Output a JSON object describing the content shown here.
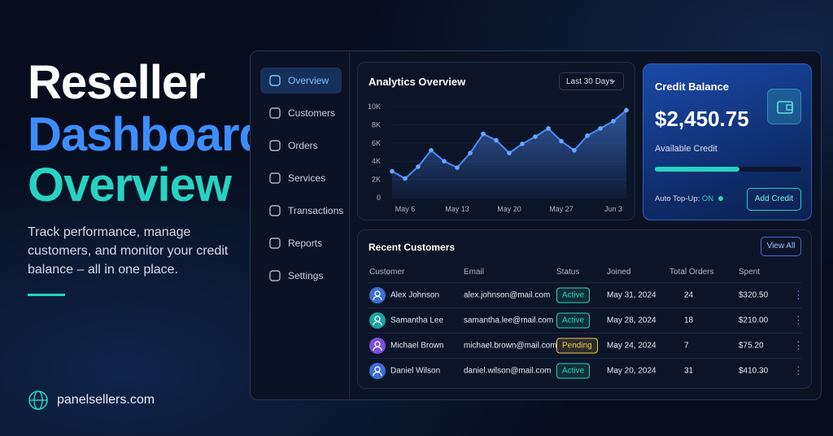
{
  "hero": {
    "title_line1": "Reseller",
    "title_line2": "Dashboard",
    "title_line3": "Overview",
    "description": "Track performance, manage customers, and monitor your credit balance – all in one place.",
    "website": "panelsellers.com"
  },
  "sidebar": {
    "items": [
      "Overview",
      "Customers",
      "Orders",
      "Services",
      "Transactions",
      "Reports",
      "Settings"
    ]
  },
  "chart_data": {
    "type": "line",
    "title": "Analytics Overview",
    "filter": "Last 30 Days",
    "color": "#4a8cff",
    "categories": [
      null,
      "May 6",
      null,
      null,
      null,
      "May 13",
      null,
      null,
      null,
      "May 20",
      null,
      null,
      null,
      "May 27",
      null,
      null,
      null,
      "Jun 3",
      null
    ],
    "values": [
      2900,
      2100,
      3400,
      5200,
      4000,
      3300,
      4900,
      7000,
      6300,
      4900,
      5900,
      6700,
      7600,
      6200,
      5200,
      6800,
      7600,
      8400,
      9600
    ],
    "ylim": [
      0,
      10000
    ],
    "yticks": [
      0,
      {
        "value": 2000,
        "label": "2K"
      },
      {
        "value": 4000,
        "label": "4K"
      },
      {
        "value": 6000,
        "label": "6K"
      },
      {
        "value": 8000,
        "label": "8K"
      },
      {
        "value": 10000,
        "label": "10K"
      }
    ]
  },
  "credit": {
    "title": "Credit Balance",
    "amount": "$2,450.75",
    "subtitle": "Available Credit",
    "progress": 58,
    "auto_topup_label": "Auto Top-Up:",
    "auto_topup_value": "ON",
    "button": "Add Credit"
  },
  "customers": {
    "title": "Recent Customers",
    "button": "View All",
    "headers": [
      "Customer",
      "Email",
      "Status",
      "Joined",
      "Total Orders",
      "Spent"
    ],
    "rows": [
      {
        "name": "Alex Johnson",
        "email": "alex.johnson@mail.com",
        "status": "Active",
        "joined": "May 31, 2024",
        "orders": 24,
        "spent": "$320.50",
        "status_color": "#2ed3b7",
        "avatar_color": "#3b6fd8"
      },
      {
        "name": "Samantha Lee",
        "email": "samantha.lee@mail.com",
        "status": "Active",
        "joined": "May 28, 2024",
        "orders": 18,
        "spent": "$210.00",
        "status_color": "#2ed3b7",
        "avatar_color": "#1aa3a3"
      },
      {
        "name": "Michael Brown",
        "email": "michael.brown@mail.com",
        "status": "Pending",
        "joined": "May 24, 2024",
        "orders": 7,
        "spent": "$75.20",
        "status_color": "#f2c94c",
        "avatar_color": "#7a4fd6"
      },
      {
        "name": "Daniel Wilson",
        "email": "daniel.wilson@mail.com",
        "status": "Active",
        "joined": "May 20, 2024",
        "orders": 31,
        "spent": "$410.30",
        "status_color": "#2ed3b7",
        "avatar_color": "#3b6fd8"
      }
    ]
  }
}
